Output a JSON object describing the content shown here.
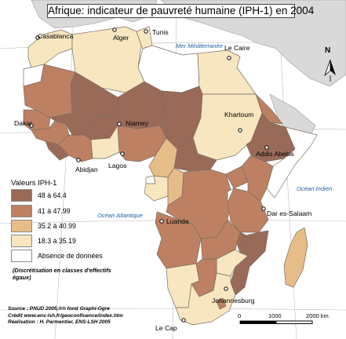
{
  "title": "Afrique: indicateur de pauvreté humaine (IPH-1) en 2004",
  "seas": {
    "mediterranean": "Mer Méditerranée",
    "atlantic": "Océan Atlantique",
    "indian": "Océan Indien"
  },
  "cities": {
    "casablanca": "Casablanca",
    "alger": "Alger",
    "tunis": "Tunis",
    "le_caire": "Le Caire",
    "khartoum": "Khartoum",
    "niamey": "Niamey",
    "dakar": "Dakar",
    "abidjan": "Abidjan",
    "lagos": "Lagos",
    "addis_abeba": "Addis Abeba",
    "luanda": "Luanda",
    "dar_es_salaam": "Dar es-Salaam",
    "johannesburg": "Johannesburg",
    "le_cap": "Le Cap"
  },
  "legend": {
    "title": "Valeurs IPH-1",
    "items": [
      {
        "label": "48 à 64.4",
        "color": "#9a6a58"
      },
      {
        "label": "41 à 47.99",
        "color": "#bd8063"
      },
      {
        "label": "35.2 à 40.99",
        "color": "#e6bd89"
      },
      {
        "label": "18.3 à 35.19",
        "color": "#f7e6c0"
      },
      {
        "label": "Absence de données",
        "color": "#ffffff"
      }
    ],
    "note": "(Discrétisation en classes d'effectifs égaux)"
  },
  "credits": {
    "source": "Source : PNUD 2005,®® fond Graphi-Ogre",
    "credit": "Crédit www.ens-lsh.fr/geoconfluence/index.htm",
    "realisation": "Réalisation : H. Parmentier, ENS-LSH 2005"
  },
  "scale": {
    "ticks": [
      "0",
      "1000",
      "2000 km"
    ]
  },
  "north_label": "N",
  "colors": {
    "sea": "#ffffff",
    "non_african_land": "#d9d9d9",
    "graticule": "#bdbdbd",
    "border": "#7a6e62",
    "title_border": "#444444",
    "sea_label": "#1f5fa8"
  }
}
